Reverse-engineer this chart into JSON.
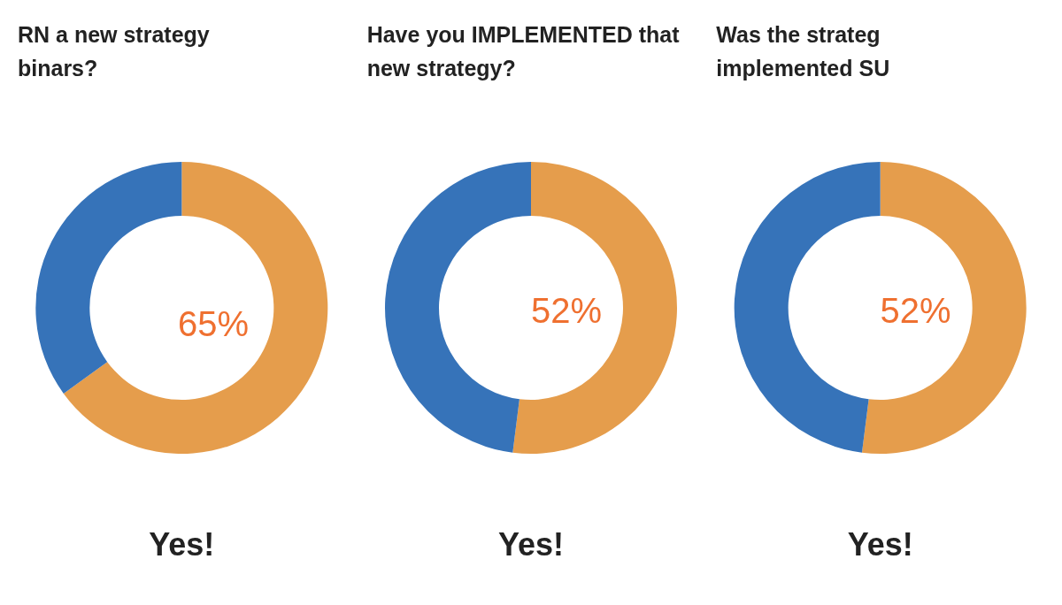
{
  "chart_data": [
    {
      "type": "donut",
      "title": "RN a new strategy\nbinars?",
      "categories": [
        "Yes!",
        null
      ],
      "values": [
        65,
        35
      ],
      "colors": [
        "#e59d4c",
        "#3673b9"
      ],
      "value_labels": [
        "65%",
        null
      ]
    },
    {
      "type": "donut",
      "title": "Have you IMPLEMENTED that\nnew strategy?",
      "categories": [
        "Yes!",
        null
      ],
      "values": [
        52,
        48
      ],
      "colors": [
        "#e59d4c",
        "#3673b9"
      ],
      "value_labels": [
        "52%",
        null
      ]
    },
    {
      "type": "donut",
      "title": "Was the strateg\nimplemented SU",
      "categories": [
        "Yes!",
        null
      ],
      "values": [
        52,
        48
      ],
      "colors": [
        "#e59d4c",
        "#3673b9"
      ],
      "value_labels": [
        "52%",
        null
      ]
    }
  ]
}
